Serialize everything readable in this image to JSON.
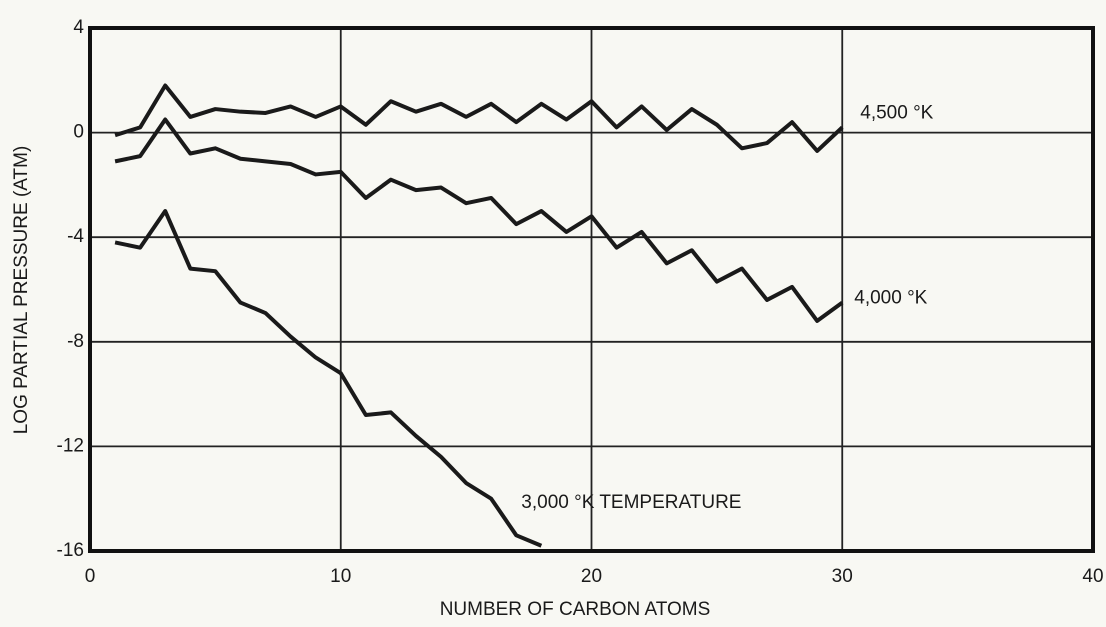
{
  "chart_data": {
    "type": "line",
    "xlabel": "NUMBER OF CARBON ATOMS",
    "ylabel": "LOG PARTIAL PRESSURE (ATM)",
    "xlim": [
      0,
      40
    ],
    "xticks": [
      0,
      10,
      20,
      30,
      40
    ],
    "ylim": [
      -16,
      4
    ],
    "yticks": [
      4,
      0,
      -4,
      -8,
      -12,
      -16
    ],
    "grid": true,
    "series": [
      {
        "name": "4,500 °K",
        "color": "#1a1a1a",
        "x": [
          1,
          2,
          3,
          4,
          5,
          6,
          7,
          8,
          9,
          10,
          11,
          12,
          13,
          14,
          15,
          16,
          17,
          18,
          19,
          20,
          21,
          22,
          23,
          24,
          25,
          26,
          27,
          28,
          29,
          30
        ],
        "values": [
          -0.1,
          0.2,
          1.8,
          0.6,
          0.9,
          0.8,
          0.75,
          1.0,
          0.6,
          1.0,
          0.3,
          1.2,
          0.8,
          1.1,
          0.6,
          1.1,
          0.4,
          1.1,
          0.5,
          1.2,
          0.2,
          1.0,
          0.1,
          0.9,
          0.3,
          -0.6,
          -0.4,
          0.4,
          -0.7,
          0.2
        ]
      },
      {
        "name": "4,000 °K",
        "color": "#1a1a1a",
        "x": [
          1,
          2,
          3,
          4,
          5,
          6,
          7,
          8,
          9,
          10,
          11,
          12,
          13,
          14,
          15,
          16,
          17,
          18,
          19,
          20,
          21,
          22,
          23,
          24,
          25,
          26,
          27,
          28,
          29,
          30
        ],
        "values": [
          -1.1,
          -0.9,
          0.5,
          -0.8,
          -0.6,
          -1.0,
          -1.1,
          -1.2,
          -1.6,
          -1.5,
          -2.5,
          -1.8,
          -2.2,
          -2.1,
          -2.7,
          -2.5,
          -3.5,
          -3.0,
          -3.8,
          -3.2,
          -4.4,
          -3.8,
          -5.0,
          -4.5,
          -5.7,
          -5.2,
          -6.4,
          -5.9,
          -7.2,
          -6.5
        ]
      },
      {
        "name": "3,000 °K TEMPERATURE",
        "color": "#1a1a1a",
        "x": [
          1,
          2,
          3,
          4,
          5,
          6,
          7,
          8,
          9,
          10,
          11,
          12,
          13,
          14,
          15,
          16,
          17,
          18
        ],
        "values": [
          -4.2,
          -4.4,
          -3.0,
          -5.2,
          -5.3,
          -6.5,
          -6.9,
          -7.8,
          -8.6,
          -9.2,
          -10.8,
          -10.7,
          -11.6,
          -12.4,
          -13.4,
          -14.0,
          -15.4,
          -15.8
        ]
      }
    ]
  }
}
